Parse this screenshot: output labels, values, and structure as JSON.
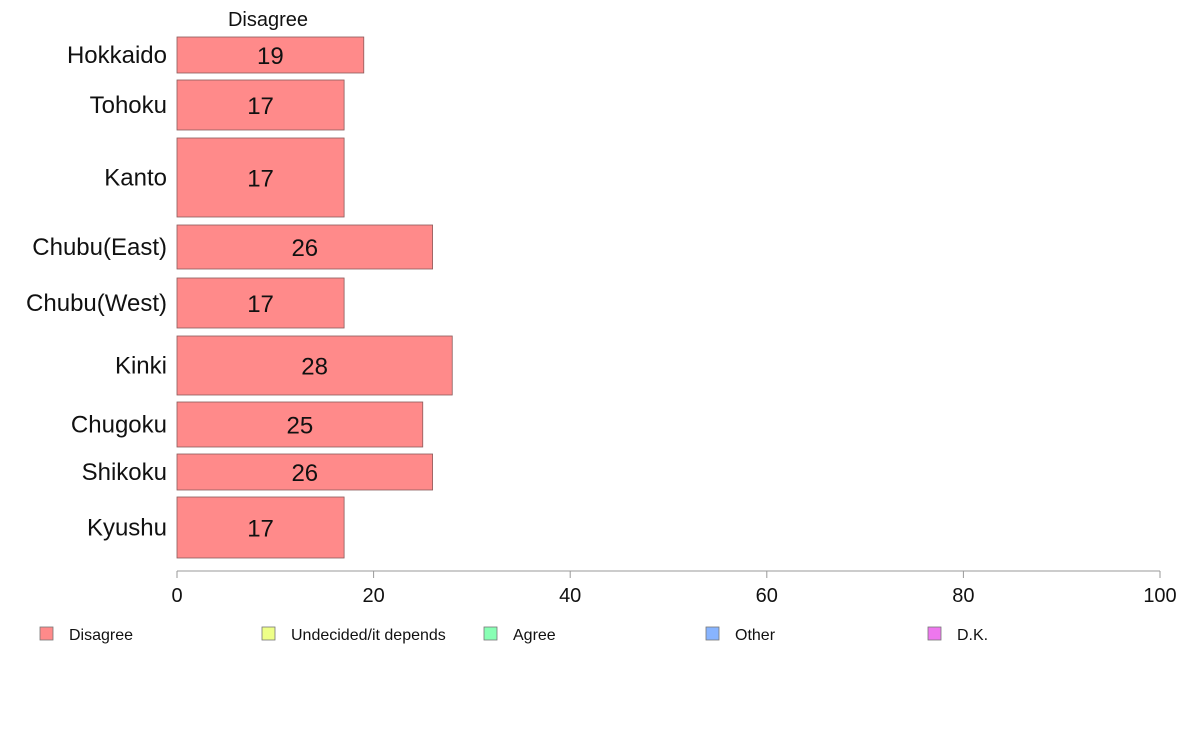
{
  "chart_data": {
    "type": "bar",
    "orientation": "horizontal",
    "panel_title": "Disagree",
    "categories": [
      "Hokkaido",
      "Tohoku",
      "Kanto",
      "Chubu(East)",
      "Chubu(West)",
      "Kinki",
      "Chugoku",
      "Shikoku",
      "Kyushu"
    ],
    "series": [
      {
        "name": "Disagree",
        "values": [
          19,
          17,
          17,
          26,
          17,
          28,
          25,
          26,
          17
        ],
        "color": "#ff8a8a"
      }
    ],
    "value_labels": [
      "19",
      "17",
      "17",
      "26",
      "17",
      "28",
      "25",
      "26",
      "17"
    ],
    "xlim": [
      0,
      100
    ],
    "xticks": [
      0,
      20,
      40,
      60,
      80,
      100
    ],
    "xtick_labels": [
      "0",
      "20",
      "40",
      "60",
      "80",
      "100"
    ],
    "grid": false,
    "legend": {
      "placement": "bottom",
      "entries": [
        {
          "label": "Disagree",
          "color": "#ff8a8a"
        },
        {
          "label": "Undecided/it depends",
          "color": "#eeff88"
        },
        {
          "label": "Agree",
          "color": "#88ffb4"
        },
        {
          "label": "Other",
          "color": "#88b4ff"
        },
        {
          "label": "D.K.",
          "color": "#ee77ee"
        }
      ]
    }
  }
}
